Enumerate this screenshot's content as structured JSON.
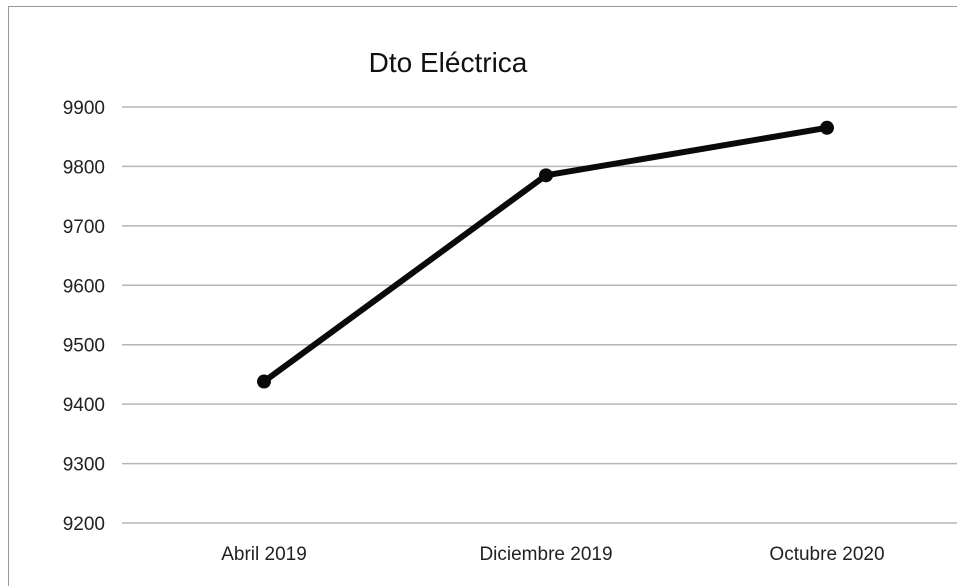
{
  "chart_data": {
    "type": "line",
    "title": "Dto Eléctrica",
    "xlabel": "",
    "ylabel": "",
    "categories": [
      "Abril 2019",
      "Diciembre 2019",
      "Octubre 2020"
    ],
    "values": [
      9438,
      9785,
      9865
    ],
    "ylim": [
      9200,
      9900
    ],
    "yticks": [
      9200,
      9300,
      9400,
      9500,
      9600,
      9700,
      9800,
      9900
    ],
    "grid": true,
    "legend": "none",
    "colors": {
      "line": "#0a0a0a",
      "grid": "#b5b5b5",
      "background": "#ffffff"
    }
  }
}
